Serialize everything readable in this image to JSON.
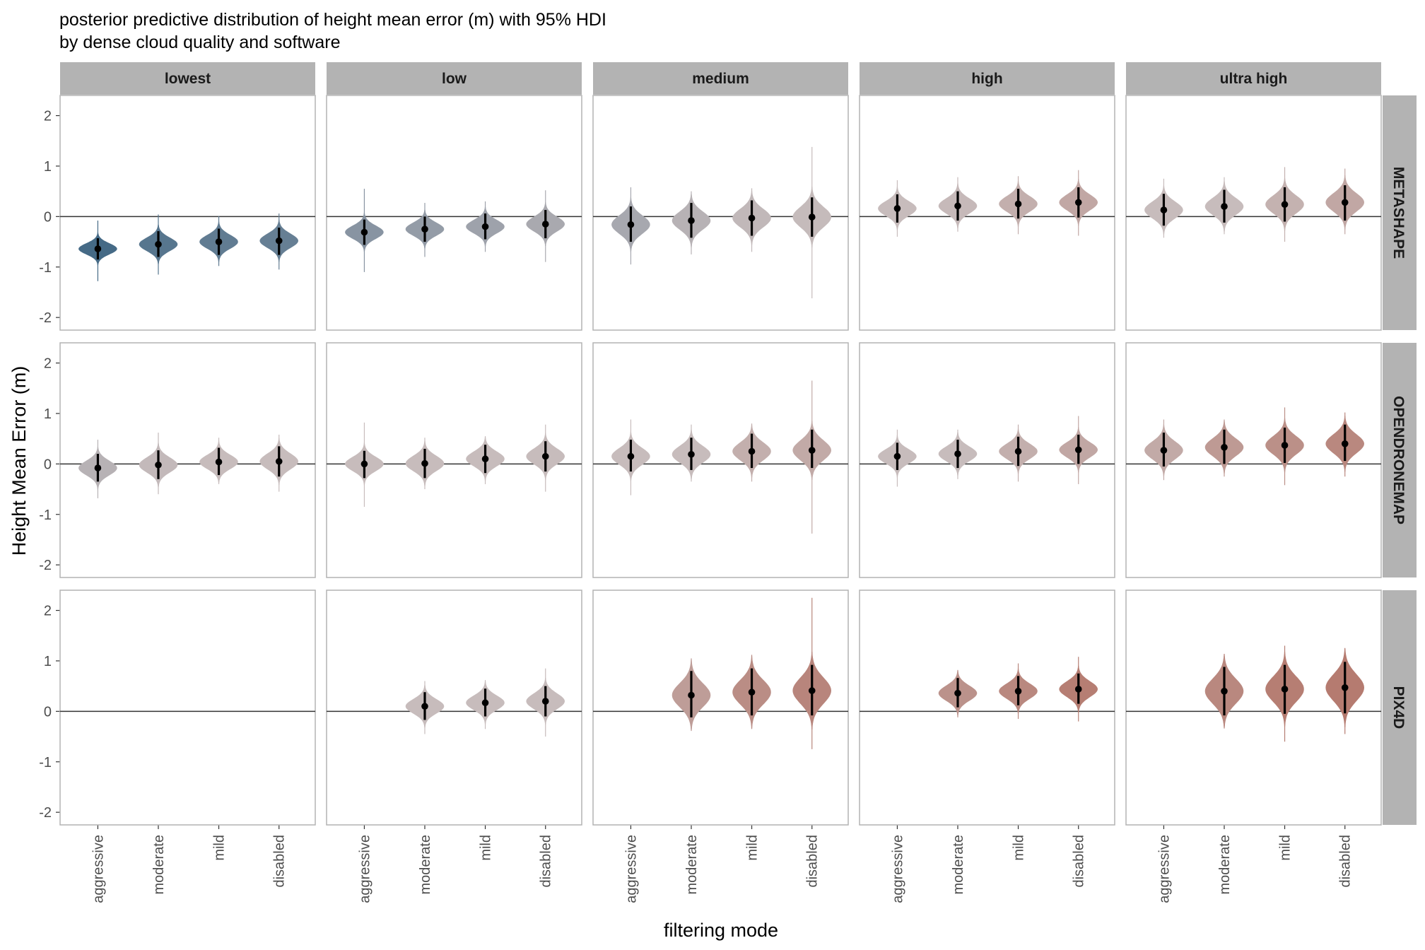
{
  "chart_data": {
    "type": "violin",
    "title": "posterior predictive distribution of height mean error (m) with 95% HDI",
    "subtitle": "by dense cloud quality and software",
    "xlabel": "filtering mode",
    "ylabel": "Height Mean Error (m)",
    "ylim": [
      -2.25,
      2.4
    ],
    "yticks": [
      -2,
      -1,
      0,
      1,
      2
    ],
    "reference_line": 0,
    "grid": false,
    "facet_columns": [
      "lowest",
      "low",
      "medium",
      "high",
      "ultra high"
    ],
    "facet_rows": [
      "METASHAPE",
      "OPENDRONEMAP",
      "PIX4D"
    ],
    "categories": [
      "aggressive",
      "moderate",
      "mild",
      "disabled"
    ],
    "color_scale": {
      "negative": "#456a86",
      "neutral": "#c7bcbc",
      "positive": "#b57b70"
    },
    "cells": [
      {
        "software": "METASHAPE",
        "quality": "lowest",
        "points": [
          {
            "filter": "aggressive",
            "median": -0.64,
            "hdi": [
              -0.85,
              -0.43
            ],
            "range": [
              -1.28,
              -0.08
            ]
          },
          {
            "filter": "moderate",
            "median": -0.55,
            "hdi": [
              -0.8,
              -0.29
            ],
            "range": [
              -1.15,
              0.04
            ]
          },
          {
            "filter": "mild",
            "median": -0.5,
            "hdi": [
              -0.76,
              -0.24
            ],
            "range": [
              -0.98,
              0.01
            ]
          },
          {
            "filter": "disabled",
            "median": -0.48,
            "hdi": [
              -0.76,
              -0.22
            ],
            "range": [
              -1.05,
              0.06
            ]
          }
        ]
      },
      {
        "software": "METASHAPE",
        "quality": "low",
        "points": [
          {
            "filter": "aggressive",
            "median": -0.31,
            "hdi": [
              -0.56,
              -0.06
            ],
            "range": [
              -1.1,
              0.55
            ]
          },
          {
            "filter": "moderate",
            "median": -0.25,
            "hdi": [
              -0.5,
              0.0
            ],
            "range": [
              -0.8,
              0.27
            ]
          },
          {
            "filter": "mild",
            "median": -0.2,
            "hdi": [
              -0.45,
              0.06
            ],
            "range": [
              -0.7,
              0.3
            ]
          },
          {
            "filter": "disabled",
            "median": -0.15,
            "hdi": [
              -0.43,
              0.13
            ],
            "range": [
              -0.9,
              0.52
            ]
          }
        ]
      },
      {
        "software": "METASHAPE",
        "quality": "medium",
        "points": [
          {
            "filter": "aggressive",
            "median": -0.16,
            "hdi": [
              -0.5,
              0.2
            ],
            "range": [
              -0.95,
              0.58
            ]
          },
          {
            "filter": "moderate",
            "median": -0.08,
            "hdi": [
              -0.42,
              0.27
            ],
            "range": [
              -0.75,
              0.5
            ]
          },
          {
            "filter": "mild",
            "median": -0.03,
            "hdi": [
              -0.38,
              0.32
            ],
            "range": [
              -0.7,
              0.56
            ]
          },
          {
            "filter": "disabled",
            "median": -0.01,
            "hdi": [
              -0.4,
              0.38
            ],
            "range": [
              -1.62,
              1.38
            ]
          }
        ]
      },
      {
        "software": "METASHAPE",
        "quality": "high",
        "points": [
          {
            "filter": "aggressive",
            "median": 0.16,
            "hdi": [
              -0.12,
              0.44
            ],
            "range": [
              -0.4,
              0.72
            ]
          },
          {
            "filter": "moderate",
            "median": 0.21,
            "hdi": [
              -0.08,
              0.5
            ],
            "range": [
              -0.3,
              0.78
            ]
          },
          {
            "filter": "mild",
            "median": 0.25,
            "hdi": [
              -0.04,
              0.55
            ],
            "range": [
              -0.35,
              0.8
            ]
          },
          {
            "filter": "disabled",
            "median": 0.28,
            "hdi": [
              -0.02,
              0.58
            ],
            "range": [
              -0.38,
              0.92
            ]
          }
        ]
      },
      {
        "software": "METASHAPE",
        "quality": "ultra high",
        "points": [
          {
            "filter": "aggressive",
            "median": 0.13,
            "hdi": [
              -0.18,
              0.45
            ],
            "range": [
              -0.42,
              0.75
            ]
          },
          {
            "filter": "moderate",
            "median": 0.2,
            "hdi": [
              -0.12,
              0.53
            ],
            "range": [
              -0.35,
              0.78
            ]
          },
          {
            "filter": "mild",
            "median": 0.24,
            "hdi": [
              -0.1,
              0.58
            ],
            "range": [
              -0.5,
              0.98
            ]
          },
          {
            "filter": "disabled",
            "median": 0.28,
            "hdi": [
              -0.08,
              0.62
            ],
            "range": [
              -0.35,
              0.95
            ]
          }
        ]
      },
      {
        "software": "OPENDRONEMAP",
        "quality": "lowest",
        "points": [
          {
            "filter": "aggressive",
            "median": -0.08,
            "hdi": [
              -0.35,
              0.2
            ],
            "range": [
              -0.68,
              0.48
            ]
          },
          {
            "filter": "moderate",
            "median": -0.02,
            "hdi": [
              -0.3,
              0.27
            ],
            "range": [
              -0.6,
              0.62
            ]
          },
          {
            "filter": "mild",
            "median": 0.04,
            "hdi": [
              -0.22,
              0.32
            ],
            "range": [
              -0.4,
              0.52
            ]
          },
          {
            "filter": "disabled",
            "median": 0.05,
            "hdi": [
              -0.25,
              0.35
            ],
            "range": [
              -0.55,
              0.58
            ]
          }
        ]
      },
      {
        "software": "OPENDRONEMAP",
        "quality": "low",
        "points": [
          {
            "filter": "aggressive",
            "median": 0.0,
            "hdi": [
              -0.28,
              0.26
            ],
            "range": [
              -0.85,
              0.82
            ]
          },
          {
            "filter": "moderate",
            "median": 0.01,
            "hdi": [
              -0.28,
              0.3
            ],
            "range": [
              -0.5,
              0.52
            ]
          },
          {
            "filter": "mild",
            "median": 0.1,
            "hdi": [
              -0.18,
              0.38
            ],
            "range": [
              -0.4,
              0.55
            ]
          },
          {
            "filter": "disabled",
            "median": 0.15,
            "hdi": [
              -0.15,
              0.45
            ],
            "range": [
              -0.55,
              0.78
            ]
          }
        ]
      },
      {
        "software": "OPENDRONEMAP",
        "quality": "medium",
        "points": [
          {
            "filter": "aggressive",
            "median": 0.15,
            "hdi": [
              -0.15,
              0.48
            ],
            "range": [
              -0.62,
              0.88
            ]
          },
          {
            "filter": "moderate",
            "median": 0.19,
            "hdi": [
              -0.12,
              0.52
            ],
            "range": [
              -0.35,
              0.78
            ]
          },
          {
            "filter": "mild",
            "median": 0.25,
            "hdi": [
              -0.08,
              0.6
            ],
            "range": [
              -0.35,
              0.8
            ]
          },
          {
            "filter": "disabled",
            "median": 0.27,
            "hdi": [
              -0.08,
              0.68
            ],
            "range": [
              -1.38,
              1.65
            ]
          }
        ]
      },
      {
        "software": "OPENDRONEMAP",
        "quality": "high",
        "points": [
          {
            "filter": "aggressive",
            "median": 0.15,
            "hdi": [
              -0.12,
              0.42
            ],
            "range": [
              -0.45,
              0.68
            ]
          },
          {
            "filter": "moderate",
            "median": 0.2,
            "hdi": [
              -0.08,
              0.48
            ],
            "range": [
              -0.3,
              0.68
            ]
          },
          {
            "filter": "mild",
            "median": 0.25,
            "hdi": [
              -0.04,
              0.54
            ],
            "range": [
              -0.35,
              0.78
            ]
          },
          {
            "filter": "disabled",
            "median": 0.28,
            "hdi": [
              0.0,
              0.58
            ],
            "range": [
              -0.4,
              0.95
            ]
          }
        ]
      },
      {
        "software": "OPENDRONEMAP",
        "quality": "ultra high",
        "points": [
          {
            "filter": "aggressive",
            "median": 0.27,
            "hdi": [
              -0.05,
              0.62
            ],
            "range": [
              -0.32,
              0.88
            ]
          },
          {
            "filter": "moderate",
            "median": 0.33,
            "hdi": [
              0.0,
              0.68
            ],
            "range": [
              -0.25,
              0.88
            ]
          },
          {
            "filter": "mild",
            "median": 0.37,
            "hdi": [
              0.02,
              0.72
            ],
            "range": [
              -0.42,
              1.12
            ]
          },
          {
            "filter": "disabled",
            "median": 0.4,
            "hdi": [
              0.06,
              0.78
            ],
            "range": [
              -0.25,
              1.02
            ]
          }
        ]
      },
      {
        "software": "PIX4D",
        "quality": "lowest",
        "points": []
      },
      {
        "software": "PIX4D",
        "quality": "low",
        "points": [
          {
            "filter": "moderate",
            "median": 0.1,
            "hdi": [
              -0.17,
              0.38
            ],
            "range": [
              -0.45,
              0.6
            ]
          },
          {
            "filter": "mild",
            "median": 0.17,
            "hdi": [
              -0.1,
              0.45
            ],
            "range": [
              -0.35,
              0.62
            ]
          },
          {
            "filter": "disabled",
            "median": 0.2,
            "hdi": [
              -0.1,
              0.5
            ],
            "range": [
              -0.5,
              0.85
            ]
          }
        ]
      },
      {
        "software": "PIX4D",
        "quality": "medium",
        "points": [
          {
            "filter": "moderate",
            "median": 0.32,
            "hdi": [
              -0.12,
              0.8
            ],
            "range": [
              -0.35,
              1.05
            ]
          },
          {
            "filter": "mild",
            "median": 0.38,
            "hdi": [
              -0.08,
              0.85
            ],
            "range": [
              -0.35,
              1.12
            ]
          },
          {
            "filter": "disabled",
            "median": 0.41,
            "hdi": [
              -0.08,
              0.92
            ],
            "range": [
              -0.75,
              2.25
            ]
          }
        ]
      },
      {
        "software": "PIX4D",
        "quality": "high",
        "points": [
          {
            "filter": "moderate",
            "median": 0.36,
            "hdi": [
              0.08,
              0.66
            ],
            "range": [
              -0.12,
              0.82
            ]
          },
          {
            "filter": "mild",
            "median": 0.4,
            "hdi": [
              0.12,
              0.7
            ],
            "range": [
              -0.15,
              0.95
            ]
          },
          {
            "filter": "disabled",
            "median": 0.44,
            "hdi": [
              0.15,
              0.75
            ],
            "range": [
              -0.2,
              1.08
            ]
          }
        ]
      },
      {
        "software": "PIX4D",
        "quality": "ultra high",
        "points": [
          {
            "filter": "moderate",
            "median": 0.4,
            "hdi": [
              -0.08,
              0.88
            ],
            "range": [
              -0.3,
              1.05
            ]
          },
          {
            "filter": "mild",
            "median": 0.44,
            "hdi": [
              -0.05,
              0.92
            ],
            "range": [
              -0.6,
              1.3
            ]
          },
          {
            "filter": "disabled",
            "median": 0.47,
            "hdi": [
              -0.04,
              0.98
            ],
            "range": [
              -0.45,
              1.22
            ]
          }
        ]
      }
    ]
  }
}
